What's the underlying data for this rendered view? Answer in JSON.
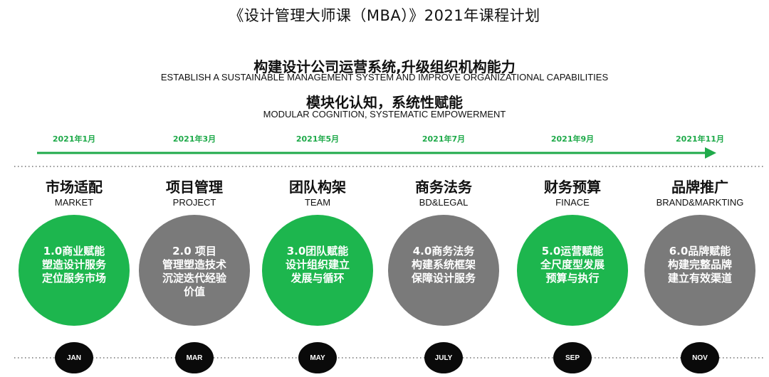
{
  "title": "《设计管理大师课（MBA）》2021年课程计划",
  "subtitle": {
    "cn": "构建设计公司运营系统,升级组织机构能力",
    "en": "ESTABLISH A SUSTAINABLE MANAGEMENT SYSTEM AND IMPROVE ORGANIZATIONAL CAPABILITIES"
  },
  "subtitle2": {
    "cn": "模块化认知，系统性赋能",
    "en": "MODULAR COGNITION, SYSTEMATIC EMPOWERMENT"
  },
  "colors": {
    "green": "#1db64e",
    "gray": "#7a7a7a",
    "dark": "#0a0a0a"
  },
  "modules": [
    {
      "date": "2021年1月",
      "cn": "市场适配",
      "en": "MARKET",
      "color": "green",
      "lines": [
        "1.0商业赋能",
        "塑造设计服务",
        "定位服务市场"
      ],
      "month": "JAN"
    },
    {
      "date": "2021年3月",
      "cn": "项目管理",
      "en": "PROJECT",
      "color": "gray",
      "lines": [
        "2.0 项目",
        "管理塑造技术",
        "沉淀迭代经验",
        "价值"
      ],
      "month": "MAR"
    },
    {
      "date": "2021年5月",
      "cn": "团队构架",
      "en": "TEAM",
      "color": "green",
      "lines": [
        "3.0团队赋能",
        "设计组织建立",
        "发展与循环"
      ],
      "month": "MAY"
    },
    {
      "date": "2021年7月",
      "cn": "商务法务",
      "en": "BD&LEGAL",
      "color": "gray",
      "lines": [
        "4.0商务法务",
        "构建系统框架",
        "保障设计服务"
      ],
      "month": "JULY"
    },
    {
      "date": "2021年9月",
      "cn": "财务预算",
      "en": "FINACE",
      "color": "green",
      "lines": [
        "5.0运营赋能",
        "全尺度型发展",
        "预算与执行"
      ],
      "month": "SEP"
    },
    {
      "date": "2021年11月",
      "cn": "品牌推广",
      "en": "BRAND&MARKTING",
      "color": "gray",
      "lines": [
        "6.0品牌赋能",
        "构建完整品牌",
        "建立有效渠道"
      ],
      "month": "NOV"
    }
  ]
}
